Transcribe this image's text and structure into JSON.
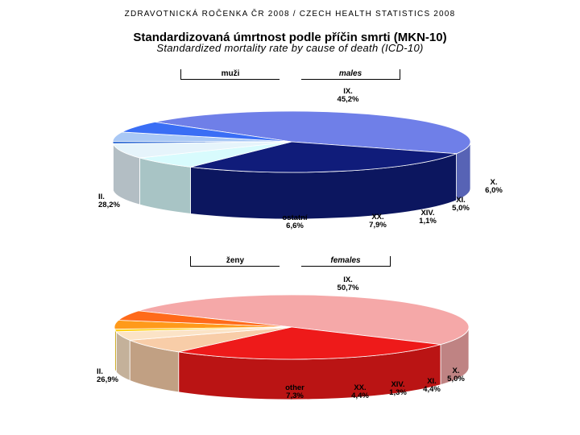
{
  "header": {
    "yearbook": "ZDRAVOTNICKÁ ROČENKA ČR 2008 / CZECH HEALTH STATISTICS 2008",
    "title": "Standardizovaná úmrtnost podle příčin smrti (MKN-10)",
    "subtitle": "Standardized mortality rate by cause of death (ICD-10)"
  },
  "panels": {
    "males": {
      "label_cz": "muži",
      "label_en": "males"
    },
    "females": {
      "label_cz": "ženy",
      "label_en": "females"
    }
  },
  "chart_data": [
    {
      "type": "pie",
      "title": "muži / males",
      "slices": [
        {
          "name": "IX.",
          "value": 45.2,
          "label": "45,2%",
          "color": "#6f7fe8"
        },
        {
          "name": "II.",
          "value": 28.2,
          "label": "28,2%",
          "color": "#101c7a"
        },
        {
          "name": "ostatní",
          "value": 6.6,
          "label": "6,6%",
          "color": "#d8fbfd"
        },
        {
          "name": "XX.",
          "value": 7.9,
          "label": "7,9%",
          "color": "#e6f4fb"
        },
        {
          "name": "XIV.",
          "value": 1.1,
          "label": "1,1%",
          "color": "#1f5fd0"
        },
        {
          "name": "XI.",
          "value": 5.0,
          "label": "5,0%",
          "color": "#a9c8f5"
        },
        {
          "name": "X.",
          "value": 6.0,
          "label": "6,0%",
          "color": "#3a6ef5"
        }
      ]
    },
    {
      "type": "pie",
      "title": "ženy / females",
      "slices": [
        {
          "name": "IX.",
          "value": 50.7,
          "label": "50,7%",
          "color": "#f5a8a8"
        },
        {
          "name": "II.",
          "value": 26.9,
          "label": "26,9%",
          "color": "#ee1a1a"
        },
        {
          "name": "other",
          "value": 7.3,
          "label": "7,3%",
          "color": "#f8cda8"
        },
        {
          "name": "XX.",
          "value": 4.4,
          "label": "4,4%",
          "color": "#fbe3c6"
        },
        {
          "name": "XIV.",
          "value": 1.3,
          "label": "1,3%",
          "color": "#ffd21a"
        },
        {
          "name": "XI.",
          "value": 4.4,
          "label": "4,4%",
          "color": "#ff9a1a"
        },
        {
          "name": "X.",
          "value": 5.0,
          "label": "5,0%",
          "color": "#ff6a1a"
        }
      ]
    }
  ]
}
